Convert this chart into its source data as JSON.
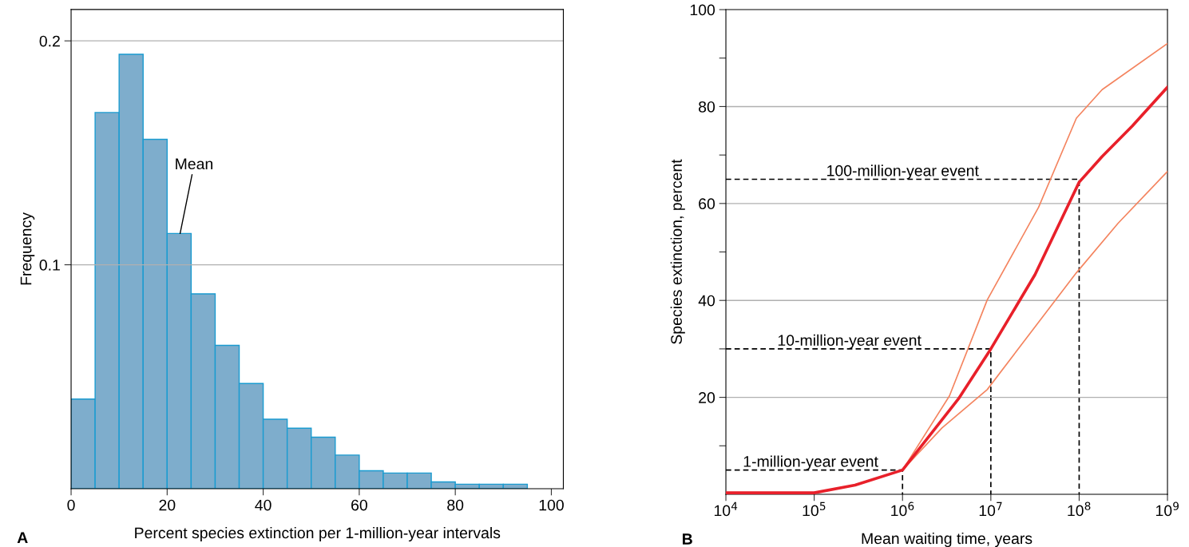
{
  "chart_data": [
    {
      "type": "histogram",
      "xlabel": "Percent species extinction per 1-million-year intervals",
      "ylabel": "Frequency",
      "bins": [
        0,
        5,
        10,
        15,
        20,
        25,
        30,
        35,
        40,
        45,
        50,
        55,
        60,
        65,
        70,
        75,
        80,
        85,
        90,
        95
      ],
      "values": [
        0.04,
        0.168,
        0.194,
        0.156,
        0.114,
        0.087,
        0.064,
        0.047,
        0.031,
        0.027,
        0.023,
        0.015,
        0.008,
        0.007,
        0.007,
        0.003,
        0.002,
        0.002,
        0.002
      ],
      "color": "#7eadcc",
      "xlim": [
        0,
        102.5
      ],
      "xticks": [
        0,
        20,
        40,
        60,
        80,
        100
      ],
      "ylim": [
        0,
        0.214
      ],
      "yticks": [
        0.1,
        0.2
      ],
      "grid": "y",
      "legend": false,
      "annotations": [
        "A",
        {
          "text": "Mean",
          "x": 22.7,
          "y": 0.114
        }
      ]
    },
    {
      "type": "line",
      "xlabel": "Mean waiting time, years",
      "ylabel": "Species extinction, percent",
      "log": "x",
      "xlim": [
        10000,
        1000000000
      ],
      "xticks": [
        {
          "value": 10000,
          "label": "10$^{4}$"
        },
        {
          "value": 100000,
          "label": "10$^{5}$"
        },
        {
          "value": 1000000,
          "label": "10$^{6}$"
        },
        {
          "value": 10000000,
          "label": "10$^{7}$"
        },
        {
          "value": 100000000,
          "label": "10$^{8}$"
        },
        {
          "value": 1000000000,
          "label": "10$^{9}$"
        }
      ],
      "ylim": [
        0,
        100
      ],
      "yticks": [
        {
          "value": 10,
          "label": null
        },
        20,
        {
          "value": 30,
          "label": null
        },
        40,
        {
          "value": 50,
          "label": null
        },
        60,
        {
          "value": 70,
          "label": null
        },
        80,
        {
          "value": 90,
          "label": null
        },
        100
      ],
      "grid": "y",
      "legend": false,
      "marker": "none",
      "series": [
        {
          "color": "#f4845f",
          "x": [
            1000000,
            3400000,
            9100000,
            34700000,
            93000000,
            182000000,
            1000000000
          ],
          "values": [
            5,
            20.3,
            40.1,
            59.2,
            77.6,
            83.5,
            93
          ]
        },
        {
          "color": "#f4845f",
          "x": [
            1000000,
            2800000,
            9100000,
            93000000,
            275000000,
            1000000000
          ],
          "values": [
            5,
            13.7,
            21.6,
            45.7,
            55.9,
            66.6
          ]
        },
        {
          "color": "#e8202a",
          "x": [
            10000,
            100000,
            290000,
            1000000,
            4300000,
            10000000,
            31600000,
            100000000,
            182000000,
            400000000,
            1000000000
          ],
          "values": [
            0.3,
            0.3,
            1.9,
            5,
            19.7,
            30,
            45.3,
            64.4,
            69.7,
            76,
            84
          ]
        },
        {
          "color": "#000000",
          "line_style": "dashed",
          "x": [
            10000,
            1000000,
            1000000
          ],
          "values": [
            5,
            5,
            0
          ]
        },
        {
          "color": "#000000",
          "line_style": "dashed",
          "x": [
            10000,
            10000000,
            10000000
          ],
          "values": [
            30,
            30,
            0
          ]
        },
        {
          "color": "#000000",
          "line_style": "dashed",
          "x": [
            10000,
            100000000,
            100000000
          ],
          "values": [
            65,
            65,
            0
          ]
        }
      ],
      "annotations": [
        "B",
        {
          "text": "1-million-year event",
          "x": 91000,
          "y": 5
        },
        {
          "text": "10-million-year event",
          "x": 250000,
          "y": 30
        },
        {
          "text": "100-million-year event",
          "x": 1000000,
          "y": 65
        }
      ]
    }
  ]
}
